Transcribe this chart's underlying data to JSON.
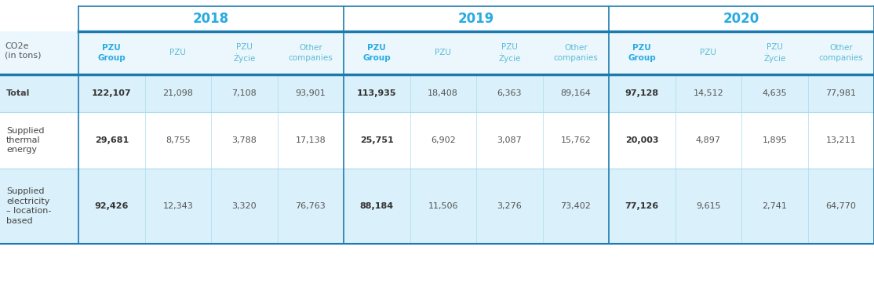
{
  "years": [
    "2018",
    "2019",
    "2020"
  ],
  "col_headers": [
    "PZU\nGroup",
    "PZU",
    "PZU\nŻycie",
    "Other\ncompanies"
  ],
  "year_header_color": "#29ABE2",
  "col_header_bold_color": "#29ABE2",
  "col_header_normal_color": "#5BBCD6",
  "value_bold_color": "#333333",
  "value_normal_color": "#555555",
  "bg_total": "#DAF0FA",
  "bg_white": "#FFFFFF",
  "bg_elec": "#DAF0FA",
  "header_line_color": "#1B7BAF",
  "divider_color": "#29ABE2",
  "thin_divider": "#AADDEE",
  "rows": [
    {
      "label": "Total",
      "bold_label": true,
      "bg": "#DAF0FA",
      "values_2018": [
        "122,107",
        "21,098",
        "7,108",
        "93,901"
      ],
      "values_2019": [
        "113,935",
        "18,408",
        "6,363",
        "89,164"
      ],
      "values_2020": [
        "97,128",
        "14,512",
        "4,635",
        "77,981"
      ]
    },
    {
      "label": "Supplied\nthermal\nenergy",
      "bold_label": false,
      "bg": "#FFFFFF",
      "values_2018": [
        "29,681",
        "8,755",
        "3,788",
        "17,138"
      ],
      "values_2019": [
        "25,751",
        "6,902",
        "3,087",
        "15,762"
      ],
      "values_2020": [
        "20,003",
        "4,897",
        "1,895",
        "13,211"
      ]
    },
    {
      "label": "Supplied\nelectricity\n– location-\nbased",
      "bold_label": false,
      "bg": "#DAF0FA",
      "values_2018": [
        "92,426",
        "12,343",
        "3,320",
        "76,763"
      ],
      "values_2019": [
        "88,184",
        "11,506",
        "3,276",
        "73,402"
      ],
      "values_2020": [
        "77,126",
        "9,615",
        "2,741",
        "64,770"
      ]
    }
  ],
  "left_label": "CO2e\n(in tons)",
  "fig_w": 11.14,
  "fig_h": 3.84,
  "dpi": 100
}
